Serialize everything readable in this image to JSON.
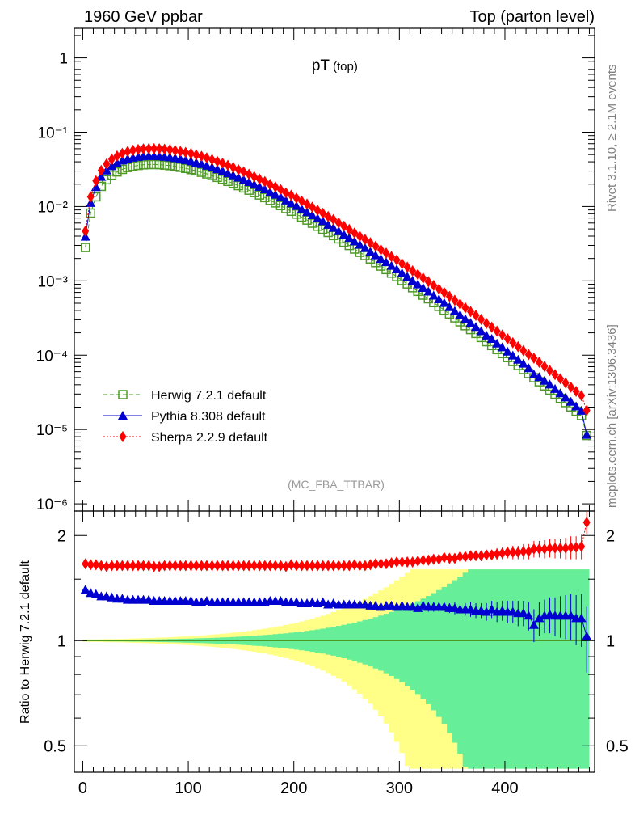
{
  "header": {
    "left": "1960 GeV ppbar",
    "right": "Top (parton level)"
  },
  "side_text": {
    "top": "Rivet 3.1.10, ≥ 2.1M events",
    "bottom": "mcplots.cern.ch [arXiv:1306.3436]"
  },
  "chart_data": [
    {
      "type": "scatter",
      "panel": "main",
      "title": "pT",
      "title_sub": "(top)",
      "yscale": "log",
      "xlim": [
        -8,
        485
      ],
      "ylim": [
        8e-07,
        2.5
      ],
      "xlabel": "",
      "ylabel": "",
      "y_tick_labels": [
        "1",
        "10⁻¹",
        "10⁻²",
        "10⁻³",
        "10⁻⁴",
        "10⁻⁵",
        "10⁻⁶"
      ],
      "y_tick_values": [
        1,
        0.1,
        0.01,
        0.001,
        0.0001,
        1e-05,
        1e-06
      ],
      "annotation": "(MC_FBA_TTBAR)",
      "legend_placement": "lower-left",
      "x": [
        2.5,
        7.5,
        12.5,
        17.5,
        22.5,
        27.5,
        32.5,
        37.5,
        42.5,
        47.5,
        52.5,
        57.5,
        62.5,
        67.5,
        72.5,
        77.5,
        82.5,
        87.5,
        92.5,
        97.5,
        102.5,
        107.5,
        112.5,
        117.5,
        122.5,
        127.5,
        132.5,
        137.5,
        142.5,
        147.5,
        152.5,
        157.5,
        162.5,
        167.5,
        172.5,
        177.5,
        182.5,
        187.5,
        192.5,
        197.5,
        202.5,
        207.5,
        212.5,
        217.5,
        222.5,
        227.5,
        232.5,
        237.5,
        242.5,
        247.5,
        252.5,
        257.5,
        262.5,
        267.5,
        272.5,
        277.5,
        282.5,
        287.5,
        292.5,
        297.5,
        302.5,
        307.5,
        312.5,
        317.5,
        322.5,
        327.5,
        332.5,
        337.5,
        342.5,
        347.5,
        352.5,
        357.5,
        362.5,
        367.5,
        372.5,
        377.5,
        382.5,
        387.5,
        392.5,
        397.5,
        402.5,
        407.5,
        412.5,
        417.5,
        422.5,
        427.5,
        432.5,
        437.5,
        442.5,
        447.5,
        452.5,
        457.5,
        462.5,
        467.5,
        472.5,
        477.5
      ],
      "series": [
        {
          "name": "Herwig 7.2.1 default",
          "color": "#4d9a26",
          "marker": "open-square",
          "line": "dashed",
          "values": [
            0.00281,
            0.00816,
            0.0135,
            0.0187,
            0.0229,
            0.0264,
            0.0292,
            0.0316,
            0.0335,
            0.0348,
            0.0357,
            0.0364,
            0.0367,
            0.0368,
            0.0366,
            0.0361,
            0.0355,
            0.0347,
            0.0337,
            0.0326,
            0.0314,
            0.0302,
            0.0289,
            0.0275,
            0.0261,
            0.0247,
            0.0232,
            0.0218,
            0.0205,
            0.0191,
            0.0178,
            0.0166,
            0.0154,
            0.0143,
            0.0132,
            0.0121,
            0.0112,
            0.0103,
            0.00938,
            0.00863,
            0.00791,
            0.00719,
            0.00657,
            0.00597,
            0.00543,
            0.00494,
            0.00448,
            0.00407,
            0.00367,
            0.00331,
            0.00299,
            0.00268,
            0.00242,
            0.00219,
            0.00197,
            0.00176,
            0.00158,
            0.00142,
            0.00127,
            0.00114,
            0.00101,
            0.000909,
            0.000808,
            0.000722,
            0.000642,
            0.000574,
            0.000509,
            0.000453,
            0.000402,
            0.000358,
            0.000318,
            0.000281,
            0.000249,
            0.000221,
            0.000196,
            0.000173,
            0.000152,
            0.000135,
            0.000119,
            0.000105,
            9.29e-05,
            8.22e-05,
            7.26e-05,
            6.41e-05,
            5.66e-05,
            4.98e-05,
            4.39e-05,
            3.86e-05,
            3.39e-05,
            2.98e-05,
            2.62e-05,
            2.3e-05,
            2.01e-05,
            1.76e-05,
            1.54e-05,
            8.3e-06
          ]
        },
        {
          "name": "Pythia 8.308 default",
          "color": "#0000d0",
          "marker": "filled-triangle",
          "line": "solid",
          "values": [
            0.00394,
            0.0112,
            0.0183,
            0.0251,
            0.0306,
            0.035,
            0.0387,
            0.0417,
            0.0439,
            0.0455,
            0.0467,
            0.0476,
            0.048,
            0.0479,
            0.0476,
            0.0469,
            0.0461,
            0.045,
            0.0437,
            0.0423,
            0.0407,
            0.0391,
            0.0374,
            0.0356,
            0.0337,
            0.0319,
            0.03,
            0.0281,
            0.0264,
            0.0246,
            0.0229,
            0.0214,
            0.0198,
            0.0185,
            0.0171,
            0.0157,
            0.0145,
            0.0134,
            0.0121,
            0.0111,
            0.0102,
            0.00923,
            0.00843,
            0.00768,
            0.00695,
            0.00638,
            0.00569,
            0.00519,
            0.00467,
            0.0042,
            0.00379,
            0.00341,
            0.00307,
            0.00277,
            0.00248,
            0.00221,
            0.00198,
            0.00179,
            0.0016,
            0.00143,
            0.00127,
            0.00114,
            0.00101,
            0.000898,
            0.000806,
            0.000718,
            0.000634,
            0.000566,
            0.000504,
            0.000444,
            0.000393,
            0.000347,
            0.000307,
            0.000272,
            0.00024,
            0.000211,
            0.000184,
            0.000166,
            0.000144,
            0.000128,
            0.000112,
            9.92e-05,
            8.71e-05,
            7.71e-05,
            6.69e-05,
            5.51e-05,
            5.08e-05,
            4.54e-05,
            4.04e-05,
            3.52e-05,
            3.08e-05,
            2.71e-05,
            2.37e-05,
            2.05e-05,
            1.79e-05,
            8.5e-06
          ]
        },
        {
          "name": "Sherpa 2.2.9 default",
          "color": "#ff0000",
          "marker": "filled-diamond",
          "line": "dotted",
          "values": [
            0.00467,
            0.0135,
            0.0222,
            0.0306,
            0.0374,
            0.0433,
            0.0479,
            0.0519,
            0.0549,
            0.0571,
            0.0586,
            0.0596,
            0.0601,
            0.0601,
            0.0598,
            0.0591,
            0.0581,
            0.0568,
            0.0552,
            0.0535,
            0.0516,
            0.0496,
            0.0474,
            0.0452,
            0.0428,
            0.0405,
            0.0381,
            0.0358,
            0.0336,
            0.0313,
            0.0292,
            0.0272,
            0.0252,
            0.0234,
            0.0216,
            0.0199,
            0.0184,
            0.0169,
            0.0153,
            0.0142,
            0.013,
            0.0118,
            0.0108,
            0.0098,
            0.0089,
            0.00811,
            0.00735,
            0.00669,
            0.00602,
            0.00543,
            0.00491,
            0.00441,
            0.00398,
            0.0036,
            0.00325,
            0.00292,
            0.00262,
            0.00236,
            0.00212,
            0.00191,
            0.0017,
            0.00153,
            0.00136,
            0.00122,
            0.00109,
            0.000975,
            0.000868,
            0.000776,
            0.000694,
            0.000616,
            0.000548,
            0.000488,
            0.000434,
            0.000386,
            0.000343,
            0.000303,
            0.000268,
            0.000238,
            0.000211,
            0.000187,
            0.000166,
            0.000147,
            0.00013,
            0.000115,
            0.000102,
            9.1e-05,
            8.02e-05,
            7.06e-05,
            6.23e-05,
            5.48e-05,
            4.82e-05,
            4.24e-05,
            3.72e-05,
            3.26e-05,
            2.86e-05,
            1.81e-05
          ]
        }
      ]
    },
    {
      "type": "scatter",
      "panel": "ratio",
      "ylabel": "Ratio to Herwig 7.2.1 default",
      "xlim": [
        -8,
        485
      ],
      "ylim": [
        0.42,
        2.35
      ],
      "yscale": "log",
      "y_tick_labels": [
        "0.5",
        "1",
        "2"
      ],
      "y_tick_values": [
        0.5,
        1,
        2
      ],
      "x_tick_labels": [
        "0",
        "100",
        "200",
        "300",
        "400"
      ],
      "x_tick_values": [
        0,
        100,
        200,
        300,
        400
      ],
      "reference_line": 1,
      "band_colors": {
        "inner": "#66ee99",
        "outer": "#ffff88"
      },
      "x": [
        2.5,
        7.5,
        12.5,
        17.5,
        22.5,
        27.5,
        32.5,
        37.5,
        42.5,
        47.5,
        52.5,
        57.5,
        62.5,
        67.5,
        72.5,
        77.5,
        82.5,
        87.5,
        92.5,
        97.5,
        102.5,
        107.5,
        112.5,
        117.5,
        122.5,
        127.5,
        132.5,
        137.5,
        142.5,
        147.5,
        152.5,
        157.5,
        162.5,
        167.5,
        172.5,
        177.5,
        182.5,
        187.5,
        192.5,
        197.5,
        202.5,
        207.5,
        212.5,
        217.5,
        222.5,
        227.5,
        232.5,
        237.5,
        242.5,
        247.5,
        252.5,
        257.5,
        262.5,
        267.5,
        272.5,
        277.5,
        282.5,
        287.5,
        292.5,
        297.5,
        302.5,
        307.5,
        312.5,
        317.5,
        322.5,
        327.5,
        332.5,
        337.5,
        342.5,
        347.5,
        352.5,
        357.5,
        362.5,
        367.5,
        372.5,
        377.5,
        382.5,
        387.5,
        392.5,
        397.5,
        402.5,
        407.5,
        412.5,
        417.5,
        422.5,
        427.5,
        432.5,
        437.5,
        442.5,
        447.5,
        452.5,
        457.5,
        462.5,
        467.5,
        472.5,
        477.5
      ],
      "series": [
        {
          "name": "Pythia 8.308 default",
          "color": "#0000d0",
          "values": [
            1.4,
            1.37,
            1.36,
            1.34,
            1.34,
            1.33,
            1.32,
            1.32,
            1.31,
            1.31,
            1.31,
            1.31,
            1.31,
            1.3,
            1.3,
            1.3,
            1.3,
            1.3,
            1.3,
            1.3,
            1.3,
            1.29,
            1.29,
            1.3,
            1.29,
            1.29,
            1.29,
            1.29,
            1.29,
            1.29,
            1.29,
            1.29,
            1.29,
            1.29,
            1.29,
            1.3,
            1.3,
            1.3,
            1.29,
            1.29,
            1.29,
            1.28,
            1.28,
            1.29,
            1.28,
            1.29,
            1.27,
            1.28,
            1.27,
            1.27,
            1.27,
            1.27,
            1.27,
            1.27,
            1.26,
            1.26,
            1.25,
            1.26,
            1.26,
            1.25,
            1.26,
            1.25,
            1.25,
            1.24,
            1.26,
            1.25,
            1.25,
            1.25,
            1.25,
            1.24,
            1.24,
            1.23,
            1.23,
            1.23,
            1.22,
            1.22,
            1.21,
            1.23,
            1.21,
            1.22,
            1.21,
            1.21,
            1.2,
            1.2,
            1.18,
            1.11,
            1.16,
            1.18,
            1.19,
            1.18,
            1.18,
            1.18,
            1.18,
            1.16,
            1.16,
            1.03
          ],
          "errors": [
            0.01,
            0.01,
            0.01,
            0.01,
            0.01,
            0.01,
            0.01,
            0.01,
            0.01,
            0.01,
            0.01,
            0.01,
            0.01,
            0.01,
            0.01,
            0.01,
            0.01,
            0.01,
            0.01,
            0.01,
            0.01,
            0.01,
            0.01,
            0.01,
            0.01,
            0.01,
            0.01,
            0.01,
            0.01,
            0.01,
            0.01,
            0.01,
            0.01,
            0.01,
            0.01,
            0.01,
            0.01,
            0.01,
            0.01,
            0.01,
            0.01,
            0.01,
            0.01,
            0.01,
            0.01,
            0.01,
            0.01,
            0.01,
            0.02,
            0.02,
            0.02,
            0.02,
            0.02,
            0.02,
            0.02,
            0.02,
            0.02,
            0.02,
            0.02,
            0.03,
            0.03,
            0.03,
            0.03,
            0.03,
            0.03,
            0.04,
            0.04,
            0.04,
            0.04,
            0.04,
            0.05,
            0.05,
            0.05,
            0.06,
            0.06,
            0.06,
            0.07,
            0.07,
            0.08,
            0.08,
            0.09,
            0.09,
            0.1,
            0.1,
            0.11,
            0.12,
            0.13,
            0.13,
            0.14,
            0.15,
            0.16,
            0.17,
            0.18,
            0.19,
            0.2,
            0.22
          ]
        },
        {
          "name": "Sherpa 2.2.9 default",
          "color": "#ff0000",
          "values": [
            1.66,
            1.65,
            1.65,
            1.64,
            1.63,
            1.64,
            1.64,
            1.64,
            1.64,
            1.64,
            1.64,
            1.64,
            1.64,
            1.63,
            1.63,
            1.64,
            1.64,
            1.64,
            1.64,
            1.64,
            1.64,
            1.64,
            1.64,
            1.64,
            1.64,
            1.64,
            1.64,
            1.64,
            1.64,
            1.64,
            1.64,
            1.64,
            1.64,
            1.64,
            1.64,
            1.64,
            1.64,
            1.64,
            1.63,
            1.65,
            1.64,
            1.64,
            1.64,
            1.64,
            1.64,
            1.64,
            1.64,
            1.64,
            1.64,
            1.64,
            1.64,
            1.65,
            1.64,
            1.64,
            1.65,
            1.66,
            1.66,
            1.66,
            1.67,
            1.68,
            1.68,
            1.68,
            1.68,
            1.69,
            1.7,
            1.7,
            1.71,
            1.71,
            1.73,
            1.72,
            1.72,
            1.74,
            1.74,
            1.75,
            1.75,
            1.75,
            1.76,
            1.76,
            1.77,
            1.78,
            1.79,
            1.79,
            1.79,
            1.8,
            1.8,
            1.83,
            1.83,
            1.83,
            1.84,
            1.84,
            1.84,
            1.84,
            1.85,
            1.85,
            1.86,
            2.18
          ],
          "errors": [
            0.01,
            0.01,
            0.01,
            0.01,
            0.01,
            0.01,
            0.01,
            0.01,
            0.01,
            0.01,
            0.01,
            0.01,
            0.01,
            0.01,
            0.01,
            0.01,
            0.01,
            0.01,
            0.01,
            0.01,
            0.01,
            0.01,
            0.01,
            0.01,
            0.01,
            0.01,
            0.01,
            0.01,
            0.01,
            0.01,
            0.01,
            0.01,
            0.01,
            0.01,
            0.01,
            0.01,
            0.01,
            0.01,
            0.01,
            0.01,
            0.01,
            0.01,
            0.01,
            0.01,
            0.01,
            0.01,
            0.01,
            0.01,
            0.02,
            0.02,
            0.02,
            0.02,
            0.02,
            0.02,
            0.02,
            0.02,
            0.02,
            0.02,
            0.02,
            0.03,
            0.03,
            0.03,
            0.03,
            0.03,
            0.03,
            0.03,
            0.04,
            0.04,
            0.04,
            0.04,
            0.04,
            0.05,
            0.05,
            0.05,
            0.05,
            0.06,
            0.06,
            0.06,
            0.07,
            0.07,
            0.07,
            0.08,
            0.08,
            0.09,
            0.09,
            0.1,
            0.1,
            0.11,
            0.11,
            0.12,
            0.12,
            0.13,
            0.14,
            0.14,
            0.15,
            0.16
          ]
        }
      ]
    }
  ]
}
